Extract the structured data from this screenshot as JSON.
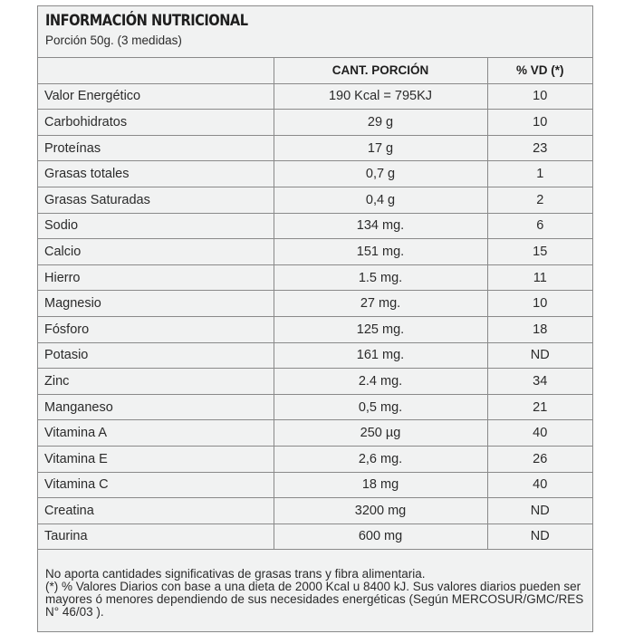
{
  "label": {
    "title": "INFORMACIÓN NUTRICIONAL",
    "serving": "Porción 50g. (3 medidas)"
  },
  "table": {
    "headers": [
      "",
      "CANT. PORCIÓN",
      "% VD (*)"
    ],
    "rows": [
      {
        "name": "Valor Energético",
        "amount": "190 Kcal = 795KJ",
        "dv": "10"
      },
      {
        "name": "Carbohidratos",
        "amount": "29 g",
        "dv": "10"
      },
      {
        "name": "Proteínas",
        "amount": "17 g",
        "dv": "23"
      },
      {
        "name": "Grasas totales",
        "amount": "0,7 g",
        "dv": "1"
      },
      {
        "name": "Grasas Saturadas",
        "amount": "0,4 g",
        "dv": "2"
      },
      {
        "name": "Sodio",
        "amount": "134 mg.",
        "dv": "6"
      },
      {
        "name": "Calcio",
        "amount": "151 mg.",
        "dv": "15"
      },
      {
        "name": "Hierro",
        "amount": "1.5 mg.",
        "dv": "11"
      },
      {
        "name": "Magnesio",
        "amount": "27 mg.",
        "dv": "10"
      },
      {
        "name": "Fósforo",
        "amount": "125 mg.",
        "dv": "18"
      },
      {
        "name": "Potasio",
        "amount": "161 mg.",
        "dv": "ND"
      },
      {
        "name": "Zinc",
        "amount": "2.4 mg.",
        "dv": "34"
      },
      {
        "name": "Manganeso",
        "amount": "0,5 mg.",
        "dv": "21"
      },
      {
        "name": "Vitamina A",
        "amount": "250 µg",
        "dv": "40"
      },
      {
        "name": "Vitamina E",
        "amount": "2,6 mg.",
        "dv": "26"
      },
      {
        "name": "Vitamina C",
        "amount": "18 mg",
        "dv": "40"
      },
      {
        "name": "Creatina",
        "amount": "3200 mg",
        "dv": "ND"
      },
      {
        "name": "Taurina",
        "amount": "600 mg",
        "dv": "ND"
      }
    ]
  },
  "footnote": {
    "line1": "No aporta cantidades significativas de grasas trans y fibra alimentaria.",
    "line2": "(*) % Valores Diarios con base a una dieta de 2000 Kcal u 8400 kJ. Sus valores diarios pueden ser mayores ó menores dependiendo de sus necesidades energéticas (Según MERCOSUR/GMC/RES N° 46/03 )."
  }
}
